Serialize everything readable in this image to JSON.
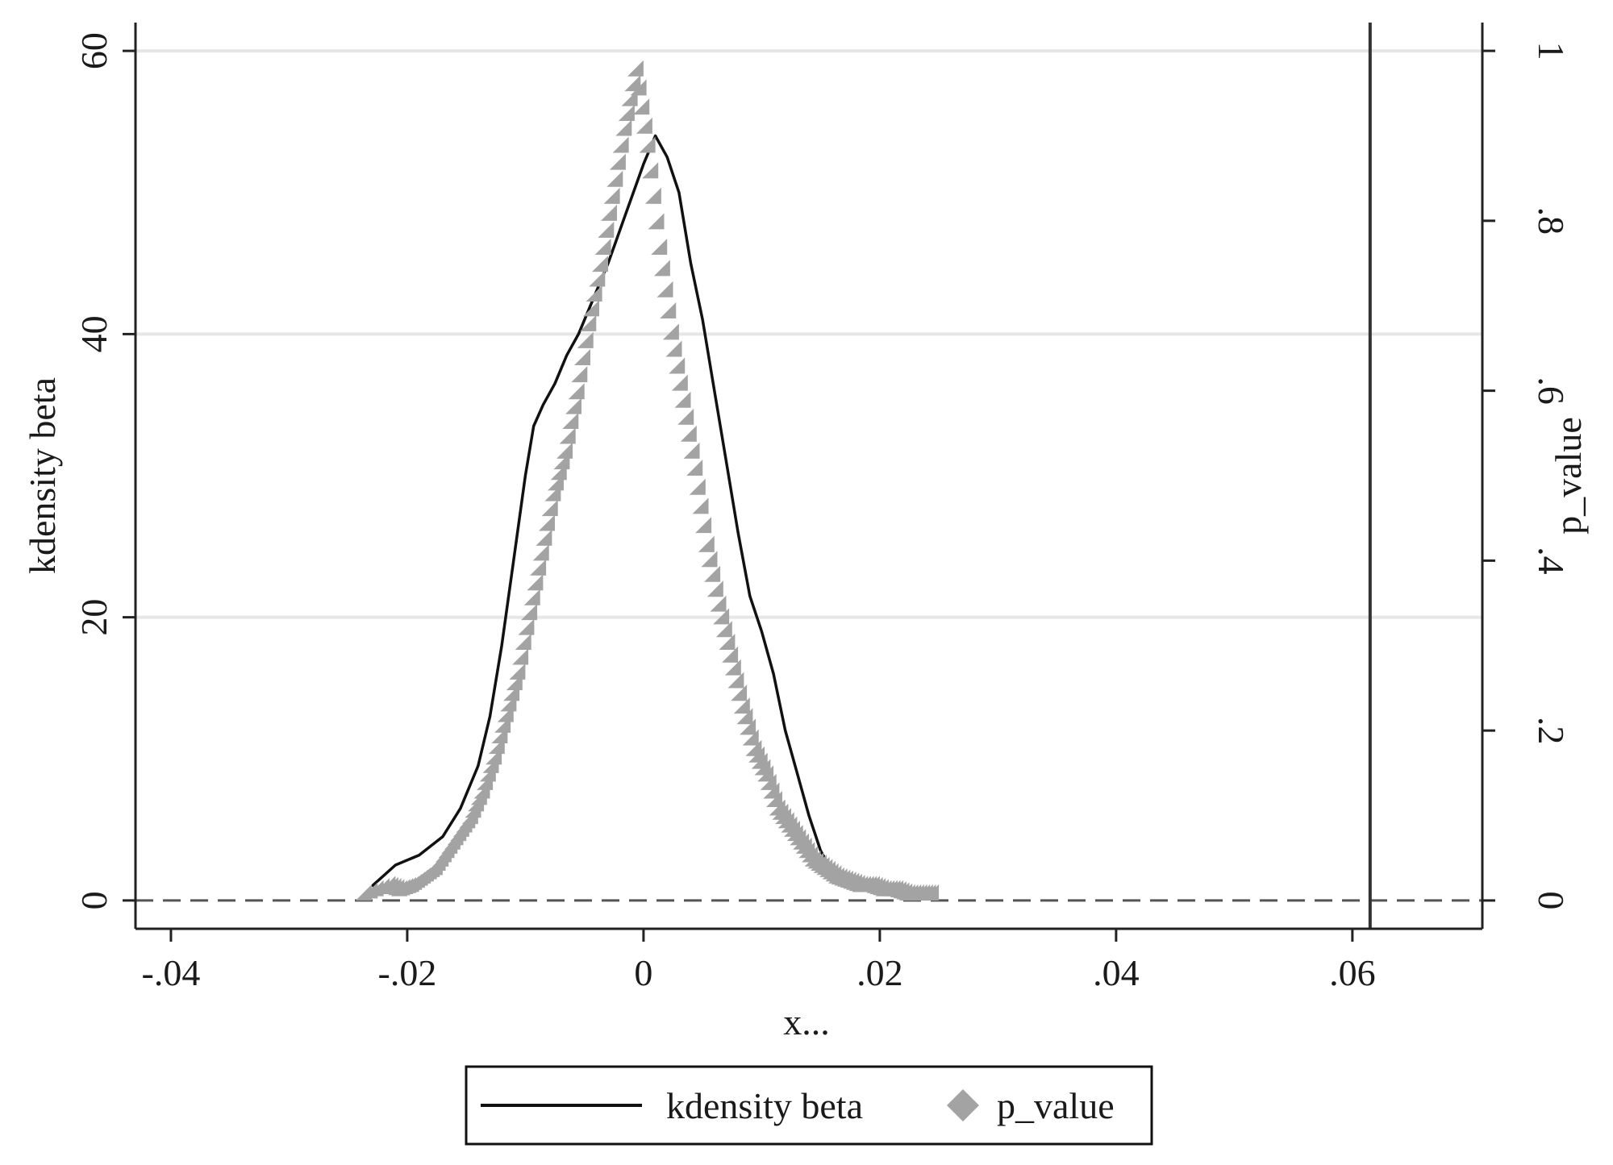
{
  "chart_data": {
    "type": "line",
    "xlabel": "x...",
    "ylabel_left": "kdensity beta",
    "ylabel_right": "p_value",
    "xlim": [
      -0.043,
      0.071
    ],
    "ylim_left": [
      -2,
      62
    ],
    "ylim_right": [
      -0.0333,
      1.0333
    ],
    "x_ticks": [
      -0.04,
      -0.02,
      0,
      0.02,
      0.04,
      0.06
    ],
    "x_tick_labels": [
      "-.04",
      "-.02",
      "0",
      ".02",
      ".04",
      ".06"
    ],
    "y_left_ticks": [
      0,
      20,
      40,
      60
    ],
    "y_left_tick_labels": [
      "0",
      "20",
      "40",
      "60"
    ],
    "y_right_ticks": [
      0,
      0.2,
      0.4,
      0.6,
      0.8,
      1
    ],
    "y_right_tick_labels": [
      "0",
      ".2",
      ".4",
      ".6",
      ".8",
      "1"
    ],
    "grid": true,
    "reference_lines": {
      "horizontal_dashed_y": 0,
      "vertical_solid_x": 0.0615
    },
    "legend_position": "bottom",
    "colors": {
      "kdensity": "#111111",
      "p_value": "#a3a3a3",
      "grid": "#e6e6e6",
      "axis": "#222222"
    },
    "series": [
      {
        "name": "kdensity beta",
        "axis": "left",
        "style": "line",
        "x": [
          -0.023,
          -0.021,
          -0.019,
          -0.017,
          -0.0155,
          -0.014,
          -0.013,
          -0.012,
          -0.011,
          -0.01,
          -0.0093,
          -0.0085,
          -0.0075,
          -0.0065,
          -0.0055,
          -0.0045,
          -0.003,
          -0.0015,
          0,
          0.001,
          0.002,
          0.003,
          0.004,
          0.005,
          0.006,
          0.007,
          0.008,
          0.009,
          0.01,
          0.011,
          0.012,
          0.013,
          0.014,
          0.015,
          0.016,
          0.017,
          0.018,
          0.019,
          0.02,
          0.022,
          0.024
        ],
        "y": [
          1.0,
          2.5,
          3.2,
          4.5,
          6.5,
          9.5,
          13.0,
          18.0,
          24.0,
          30.0,
          33.5,
          35.0,
          36.5,
          38.5,
          40.0,
          42.0,
          45.0,
          48.5,
          52.0,
          54.0,
          52.5,
          50.0,
          45.0,
          41.0,
          36.0,
          31.0,
          26.0,
          21.5,
          19.0,
          16.0,
          12.0,
          9.0,
          6.0,
          3.5,
          2.0,
          1.5,
          1.2,
          1.0,
          1.0,
          0.8,
          0.5
        ]
      },
      {
        "name": "p_value",
        "axis": "right",
        "style": "diamond-markers",
        "x": [
          -0.023,
          -0.021,
          -0.02,
          -0.019,
          -0.018,
          -0.017,
          -0.016,
          -0.015,
          -0.014,
          -0.013,
          -0.012,
          -0.011,
          -0.01,
          -0.009,
          -0.008,
          -0.007,
          -0.006,
          -0.005,
          -0.004,
          -0.003,
          -0.002,
          -0.001,
          0,
          0.001,
          0.002,
          0.003,
          0.004,
          0.005,
          0.006,
          0.007,
          0.008,
          0.009,
          0.01,
          0.011,
          0.012,
          0.013,
          0.014,
          0.015,
          0.016,
          0.017,
          0.018,
          0.019,
          0.02,
          0.021,
          0.022,
          0.023,
          0.024,
          0.025
        ],
        "y": [
          0.0,
          0.01,
          0.005,
          0.01,
          0.02,
          0.03,
          0.05,
          0.07,
          0.09,
          0.12,
          0.16,
          0.21,
          0.26,
          0.33,
          0.4,
          0.47,
          0.52,
          0.59,
          0.67,
          0.74,
          0.82,
          0.9,
          0.97,
          0.88,
          0.76,
          0.66,
          0.58,
          0.5,
          0.41,
          0.34,
          0.28,
          0.22,
          0.17,
          0.14,
          0.1,
          0.08,
          0.06,
          0.04,
          0.03,
          0.02,
          0.015,
          0.01,
          0.01,
          0.005,
          0.005,
          0.0,
          0.0,
          0.0
        ]
      }
    ]
  }
}
